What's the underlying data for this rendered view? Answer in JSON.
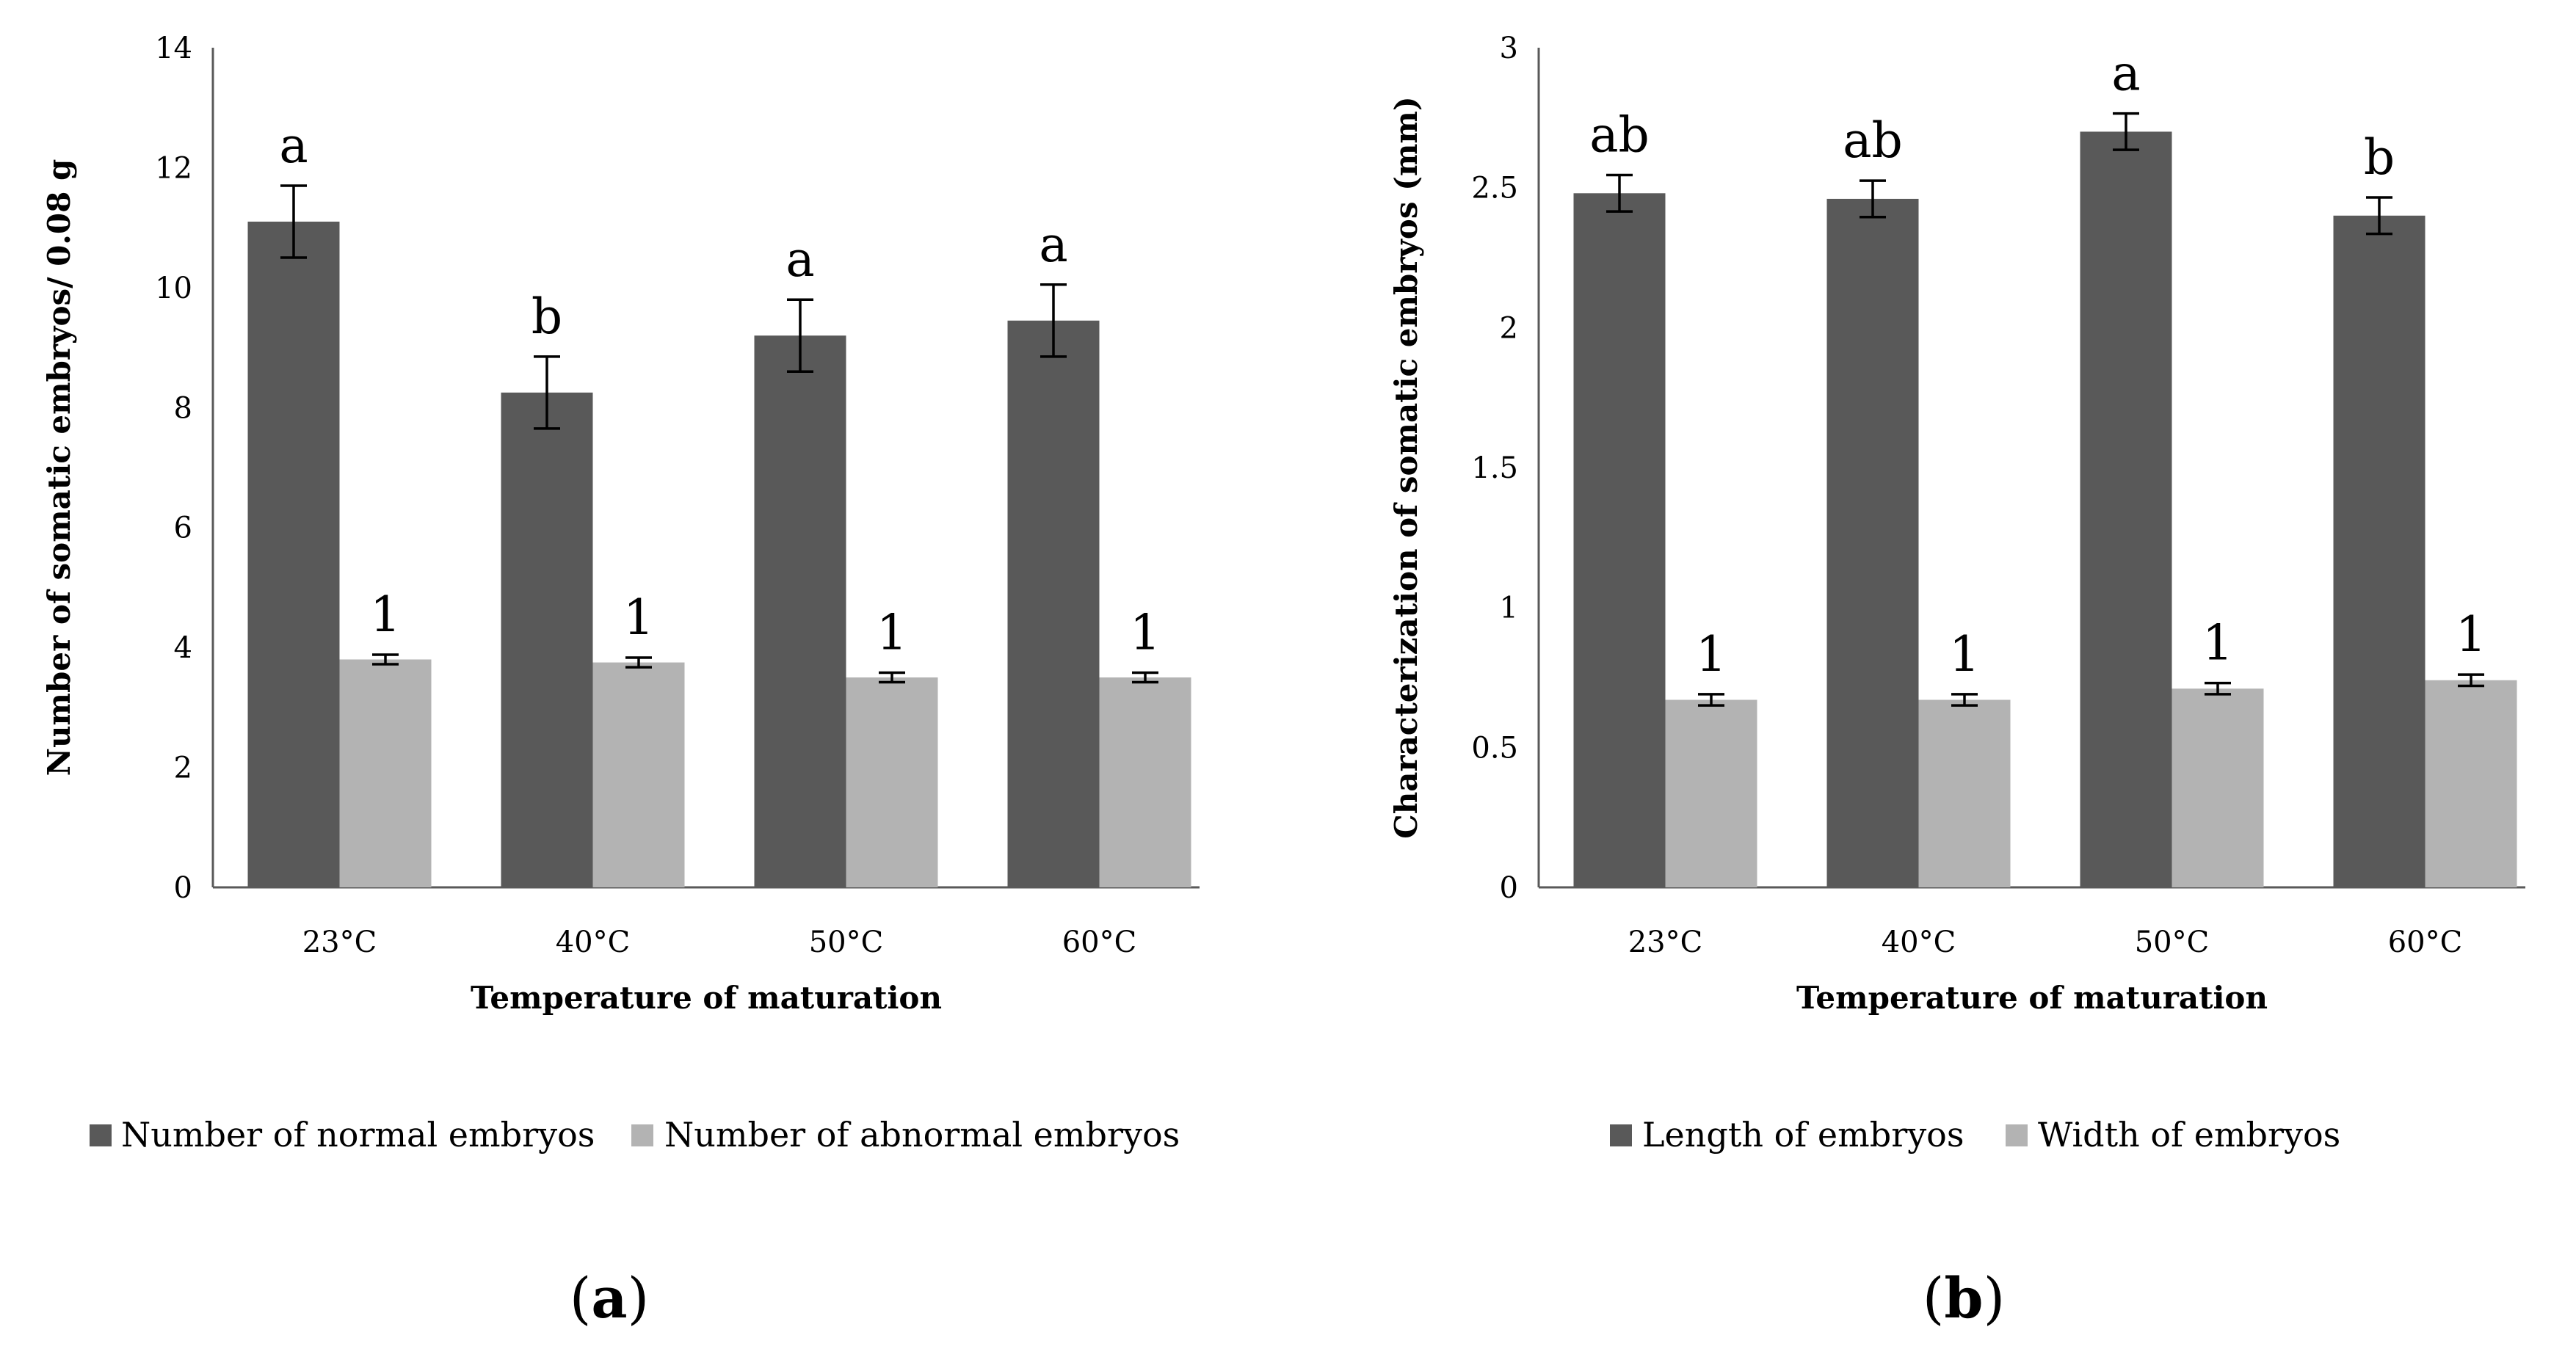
{
  "chart_data": [
    {
      "type": "bar",
      "panel_label": "(a)",
      "panel_letter": "a",
      "categories": [
        "23°C",
        "40°C",
        "50°C",
        "60°C"
      ],
      "xlabel": "Temperature of maturation",
      "ylabel": "Number of somatic embryos/ 0.08 g",
      "ylim": [
        0,
        14
      ],
      "yticks": [
        0,
        2,
        4,
        6,
        8,
        10,
        12,
        14
      ],
      "ytick_labels": [
        "0",
        "2",
        "4",
        "6",
        "8",
        "10",
        "12",
        "14"
      ],
      "legend_position": "bottom",
      "series": [
        {
          "name": "Number of normal embryos",
          "color": "#595959",
          "values": [
            11.1,
            8.25,
            9.2,
            9.45
          ],
          "errors": [
            0.6,
            0.6,
            0.6,
            0.6
          ],
          "labels": [
            "a",
            "b",
            "a",
            "a"
          ]
        },
        {
          "name": "Number of abnormal embryos",
          "color": "#b3b3b3",
          "values": [
            3.8,
            3.75,
            3.5,
            3.5
          ],
          "errors": [
            0.08,
            0.08,
            0.08,
            0.08
          ],
          "labels": [
            "1",
            "1",
            "1",
            "1"
          ]
        }
      ]
    },
    {
      "type": "bar",
      "panel_label": "(b)",
      "panel_letter": "b",
      "categories": [
        "23°C",
        "40°C",
        "50°C",
        "60°C"
      ],
      "xlabel": "Temperature of maturation",
      "ylabel": "Characterization of somatic embryos (mm)",
      "ylim": [
        0,
        3
      ],
      "yticks": [
        0,
        0.5,
        1,
        1.5,
        2,
        2.5,
        3
      ],
      "ytick_labels": [
        "0",
        "0.5",
        "1",
        "1.5",
        "2",
        "2.5",
        "3"
      ],
      "legend_position": "bottom",
      "series": [
        {
          "name": "Length of embryos",
          "color": "#595959",
          "values": [
            2.48,
            2.46,
            2.7,
            2.4
          ],
          "errors": [
            0.065,
            0.065,
            0.065,
            0.065
          ],
          "labels": [
            "ab",
            "ab",
            "a",
            "b"
          ]
        },
        {
          "name": "Width of embryos",
          "color": "#b3b3b3",
          "values": [
            0.67,
            0.67,
            0.71,
            0.74
          ],
          "errors": [
            0.02,
            0.02,
            0.02,
            0.02
          ],
          "labels": [
            "1",
            "1",
            "1",
            "1"
          ]
        }
      ]
    }
  ]
}
